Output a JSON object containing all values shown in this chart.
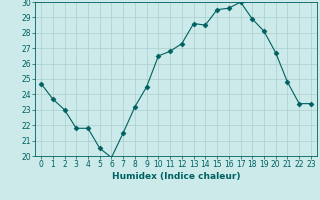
{
  "x": [
    0,
    1,
    2,
    3,
    4,
    5,
    6,
    7,
    8,
    9,
    10,
    11,
    12,
    13,
    14,
    15,
    16,
    17,
    18,
    19,
    20,
    21,
    22,
    23
  ],
  "y": [
    24.7,
    23.7,
    23.0,
    21.8,
    21.8,
    20.5,
    19.9,
    21.5,
    23.2,
    24.5,
    26.5,
    26.8,
    27.3,
    28.6,
    28.5,
    29.5,
    29.6,
    30.0,
    28.9,
    28.1,
    26.7,
    24.8,
    23.4,
    23.4
  ],
  "line_color": "#006060",
  "marker": "D",
  "marker_size": 2.5,
  "bg_color": "#cceaea",
  "grid_color": "#aacece",
  "xlabel": "Humidex (Indice chaleur)",
  "ylim": [
    20,
    30
  ],
  "xlim_min": -0.5,
  "xlim_max": 23.5,
  "yticks": [
    20,
    21,
    22,
    23,
    24,
    25,
    26,
    27,
    28,
    29,
    30
  ],
  "xticks": [
    0,
    1,
    2,
    3,
    4,
    5,
    6,
    7,
    8,
    9,
    10,
    11,
    12,
    13,
    14,
    15,
    16,
    17,
    18,
    19,
    20,
    21,
    22,
    23
  ],
  "label_fontsize": 6.5,
  "tick_fontsize": 5.5
}
